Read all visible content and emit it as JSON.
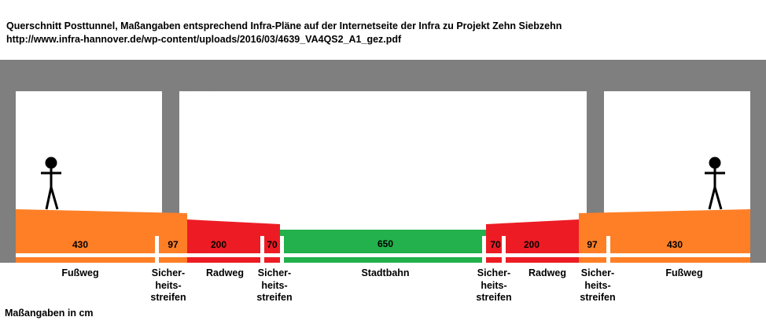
{
  "title_line1": "Querschnitt Posttunnel, Maßangaben entsprechend Infra-Pläne auf der Internetseite der Infra zu Projekt Zehn Siebzehn",
  "title_line2": "http://www.infra-hannover.de/wp-content/uploads/2016/03/4639_VA4QS2_A1_gez.pdf",
  "colors": {
    "structure": "#7f7f7f",
    "sidewalk": "#ff7f27",
    "bikeway": "#ed1c24",
    "tramway": "#22b14c",
    "stripe": "#ffffff"
  },
  "segments": [
    {
      "value": "430",
      "label": "Fußweg",
      "type": "sidewalk"
    },
    {
      "value": "97",
      "label": "Sicher-heits-streifen",
      "type": "sidewalk"
    },
    {
      "value": "200",
      "label": "Radweg",
      "type": "bikeway"
    },
    {
      "value": "70",
      "label": "Sicher-heits-streifen",
      "type": "bikeway"
    },
    {
      "value": "650",
      "label": "Stadtbahn",
      "type": "tramway"
    },
    {
      "value": "70",
      "label": "Sicher-heits-streifen",
      "type": "bikeway"
    },
    {
      "value": "200",
      "label": "Radweg",
      "type": "bikeway"
    },
    {
      "value": "97",
      "label": "Sicher-heits-streifen",
      "type": "sidewalk"
    },
    {
      "value": "430",
      "label": "Fußweg",
      "type": "sidewalk"
    }
  ],
  "labels": {
    "fussweg": "Fußweg",
    "radweg": "Radweg",
    "stadtbahn": "Stadtbahn",
    "sicher": [
      "Sicher-",
      "heits-",
      "streifen"
    ]
  },
  "footnote": "Maßangaben in cm"
}
